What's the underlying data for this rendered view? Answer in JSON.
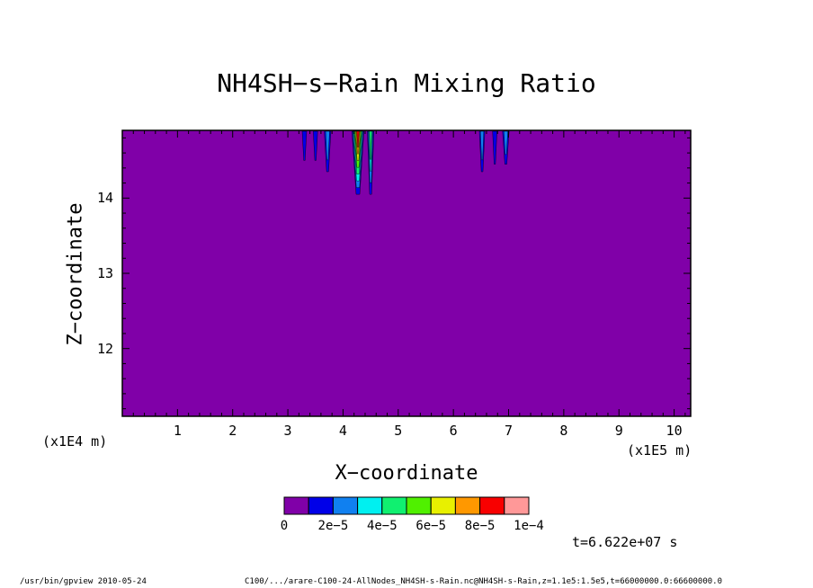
{
  "chart_data": {
    "type": "heatmap",
    "title": "NH4SH−s−Rain Mixing Ratio",
    "xlabel": "X−coordinate",
    "ylabel": "Z−coordinate",
    "x_unit": "(x1E5 m)",
    "y_unit": "(x1E4 m)",
    "xlim": [
      0,
      10.3
    ],
    "ylim": [
      11.1,
      14.9
    ],
    "x_ticks": [
      1,
      2,
      3,
      4,
      5,
      6,
      7,
      8,
      9,
      10
    ],
    "y_ticks": [
      12,
      13,
      14
    ],
    "grid": false,
    "background_level": 0,
    "colorbar": {
      "levels": [
        0,
        1e-05,
        2e-05,
        3e-05,
        4e-05,
        5e-05,
        6e-05,
        7e-05,
        8e-05,
        9e-05,
        0.0001
      ],
      "colors": [
        "#8000a8",
        "#0000e8",
        "#1080f0",
        "#00f0f0",
        "#10f070",
        "#50f000",
        "#e8f000",
        "#ff9800",
        "#f80000",
        "#ff9898"
      ],
      "tick_labels": [
        "0",
        "2e−5",
        "4e−5",
        "6e−5",
        "8e−5",
        "1e−4"
      ]
    },
    "features": [
      {
        "x_center": 3.3,
        "z_bottom": 14.5,
        "peak_level": 1,
        "width": 0.08
      },
      {
        "x_center": 3.5,
        "z_bottom": 14.5,
        "peak_level": 1,
        "width": 0.08
      },
      {
        "x_center": 3.72,
        "z_bottom": 14.35,
        "peak_level": 2,
        "width": 0.12
      },
      {
        "x_center": 4.27,
        "z_bottom": 14.05,
        "peak_level": 8,
        "width": 0.22
      },
      {
        "x_center": 4.5,
        "z_bottom": 14.05,
        "peak_level": 4,
        "width": 0.12
      },
      {
        "x_center": 6.52,
        "z_bottom": 14.35,
        "peak_level": 2,
        "width": 0.1
      },
      {
        "x_center": 6.75,
        "z_bottom": 14.45,
        "peak_level": 1,
        "width": 0.08
      },
      {
        "x_center": 6.95,
        "z_bottom": 14.45,
        "peak_level": 2,
        "width": 0.12
      }
    ],
    "time_label": "t=6.622e+07 s"
  },
  "footer": {
    "left": "/usr/bin/gpview  2010-05-24",
    "right": "C100/.../arare-C100-24-AllNodes_NH4SH-s-Rain.nc@NH4SH-s-Rain,z=1.1e5:1.5e5,t=66000000.0:66600000.0"
  }
}
